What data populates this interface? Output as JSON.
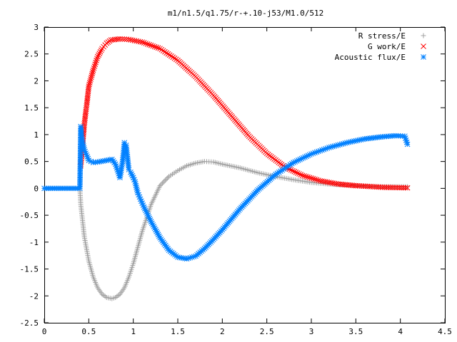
{
  "chart_data": {
    "type": "scatter",
    "title": "m1/n1.5/q1.75/r-+.10-j53/M1.0/512",
    "xlabel": "",
    "ylabel": "",
    "xlim": [
      0,
      4.5
    ],
    "ylim": [
      -2.5,
      3
    ],
    "x_ticks": [
      "0",
      "0.5",
      "1",
      "1.5",
      "2",
      "2.5",
      "3",
      "3.5",
      "4",
      "4.5"
    ],
    "y_ticks": [
      "3",
      "2.5",
      "2",
      "1.5",
      "1",
      "0.5",
      "0",
      "-0.5",
      "-1",
      "-1.5",
      "-2",
      "-2.5"
    ],
    "grid": false,
    "legend_position": "top-right",
    "series": [
      {
        "name": "R stress/E",
        "marker": "+",
        "color": "#a0a0a0",
        "points": [
          [
            0.0,
            0.0
          ],
          [
            0.2,
            0.0
          ],
          [
            0.4,
            0.0
          ],
          [
            0.41,
            -0.3
          ],
          [
            0.45,
            -0.9
          ],
          [
            0.5,
            -1.35
          ],
          [
            0.55,
            -1.65
          ],
          [
            0.6,
            -1.85
          ],
          [
            0.65,
            -1.97
          ],
          [
            0.7,
            -2.03
          ],
          [
            0.76,
            -2.05
          ],
          [
            0.8,
            -2.03
          ],
          [
            0.85,
            -1.97
          ],
          [
            0.9,
            -1.85
          ],
          [
            0.95,
            -1.65
          ],
          [
            1.0,
            -1.4
          ],
          [
            1.05,
            -1.1
          ],
          [
            1.1,
            -0.8
          ],
          [
            1.2,
            -0.3
          ],
          [
            1.3,
            0.05
          ],
          [
            1.4,
            0.22
          ],
          [
            1.5,
            0.33
          ],
          [
            1.6,
            0.42
          ],
          [
            1.7,
            0.47
          ],
          [
            1.8,
            0.5
          ],
          [
            1.9,
            0.49
          ],
          [
            2.0,
            0.45
          ],
          [
            2.2,
            0.38
          ],
          [
            2.4,
            0.29
          ],
          [
            2.6,
            0.22
          ],
          [
            2.8,
            0.16
          ],
          [
            3.0,
            0.11
          ],
          [
            3.2,
            0.08
          ],
          [
            3.5,
            0.05
          ],
          [
            3.8,
            0.03
          ],
          [
            4.08,
            0.03
          ]
        ]
      },
      {
        "name": "G work/E",
        "marker": "x",
        "color": "#ff0000",
        "points": [
          [
            0.41,
            0.42
          ],
          [
            0.43,
            0.8
          ],
          [
            0.45,
            1.2
          ],
          [
            0.48,
            1.6
          ],
          [
            0.5,
            1.9
          ],
          [
            0.55,
            2.2
          ],
          [
            0.6,
            2.45
          ],
          [
            0.65,
            2.6
          ],
          [
            0.7,
            2.7
          ],
          [
            0.75,
            2.76
          ],
          [
            0.85,
            2.78
          ],
          [
            0.95,
            2.77
          ],
          [
            1.1,
            2.72
          ],
          [
            1.3,
            2.6
          ],
          [
            1.5,
            2.38
          ],
          [
            1.7,
            2.08
          ],
          [
            1.9,
            1.73
          ],
          [
            2.1,
            1.35
          ],
          [
            2.3,
            0.97
          ],
          [
            2.5,
            0.65
          ],
          [
            2.7,
            0.4
          ],
          [
            2.9,
            0.24
          ],
          [
            3.1,
            0.14
          ],
          [
            3.3,
            0.08
          ],
          [
            3.5,
            0.05
          ],
          [
            3.8,
            0.02
          ],
          [
            4.08,
            0.01
          ]
        ]
      },
      {
        "name": "Acoustic flux/E",
        "marker": "*",
        "color": "#0080ff",
        "points": [
          [
            0.0,
            0.0
          ],
          [
            0.2,
            0.0
          ],
          [
            0.4,
            0.0
          ],
          [
            0.41,
            1.15
          ],
          [
            0.42,
            0.95
          ],
          [
            0.45,
            0.72
          ],
          [
            0.5,
            0.52
          ],
          [
            0.55,
            0.48
          ],
          [
            0.6,
            0.49
          ],
          [
            0.7,
            0.52
          ],
          [
            0.76,
            0.54
          ],
          [
            0.8,
            0.45
          ],
          [
            0.85,
            0.2
          ],
          [
            0.88,
            0.5
          ],
          [
            0.9,
            0.85
          ],
          [
            0.92,
            0.8
          ],
          [
            0.95,
            0.35
          ],
          [
            0.97,
            0.3
          ],
          [
            1.0,
            0.2
          ],
          [
            1.02,
            0.12
          ],
          [
            1.05,
            -0.08
          ],
          [
            1.08,
            -0.2
          ],
          [
            1.12,
            -0.35
          ],
          [
            1.2,
            -0.62
          ],
          [
            1.3,
            -0.92
          ],
          [
            1.4,
            -1.15
          ],
          [
            1.5,
            -1.28
          ],
          [
            1.6,
            -1.31
          ],
          [
            1.7,
            -1.26
          ],
          [
            1.8,
            -1.12
          ],
          [
            1.9,
            -0.95
          ],
          [
            2.0,
            -0.77
          ],
          [
            2.2,
            -0.38
          ],
          [
            2.4,
            -0.03
          ],
          [
            2.6,
            0.26
          ],
          [
            2.8,
            0.48
          ],
          [
            3.0,
            0.64
          ],
          [
            3.2,
            0.76
          ],
          [
            3.4,
            0.85
          ],
          [
            3.6,
            0.92
          ],
          [
            3.8,
            0.96
          ],
          [
            3.95,
            0.98
          ],
          [
            4.05,
            0.97
          ],
          [
            4.08,
            0.82
          ]
        ]
      }
    ]
  }
}
